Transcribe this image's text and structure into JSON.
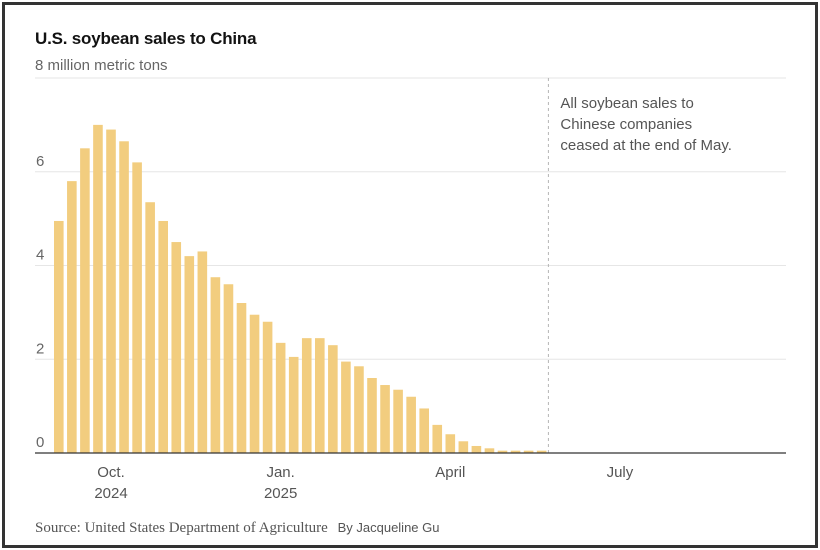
{
  "chart_data": {
    "type": "bar",
    "title": "U.S. soybean sales to China",
    "unit_label": "8 million metric tons",
    "ylabel": "million metric tons",
    "ylim": [
      0,
      8
    ],
    "y_ticks": [
      "0",
      "2",
      "4",
      "6"
    ],
    "x_ticks": [
      {
        "label": "Oct.",
        "sublabel": "2024",
        "week": 4
      },
      {
        "label": "Jan.",
        "sublabel": "2025",
        "week": 17
      },
      {
        "label": "April",
        "sublabel": "",
        "week": 30
      },
      {
        "label": "July",
        "sublabel": "",
        "week": 43
      }
    ],
    "values": [
      4.95,
      5.8,
      6.5,
      7.0,
      6.9,
      6.65,
      6.2,
      5.35,
      4.95,
      4.5,
      4.2,
      4.3,
      3.75,
      3.6,
      3.2,
      2.95,
      2.8,
      2.35,
      2.05,
      2.45,
      2.45,
      2.3,
      1.95,
      1.85,
      1.6,
      1.45,
      1.35,
      1.2,
      0.95,
      0.6,
      0.4,
      0.25,
      0.15,
      0.1,
      0.05,
      0.05,
      0.05,
      0.05
    ],
    "total_weeks": 55,
    "cutoff_week": 38,
    "annotation": [
      "All soybean sales to",
      "Chinese companies",
      "ceased at the end of May."
    ],
    "bar_color": "#f2cd7f",
    "grid": true
  },
  "footer": {
    "source": "Source: United States Department of Agriculture",
    "byline": "By Jacqueline Gu"
  }
}
